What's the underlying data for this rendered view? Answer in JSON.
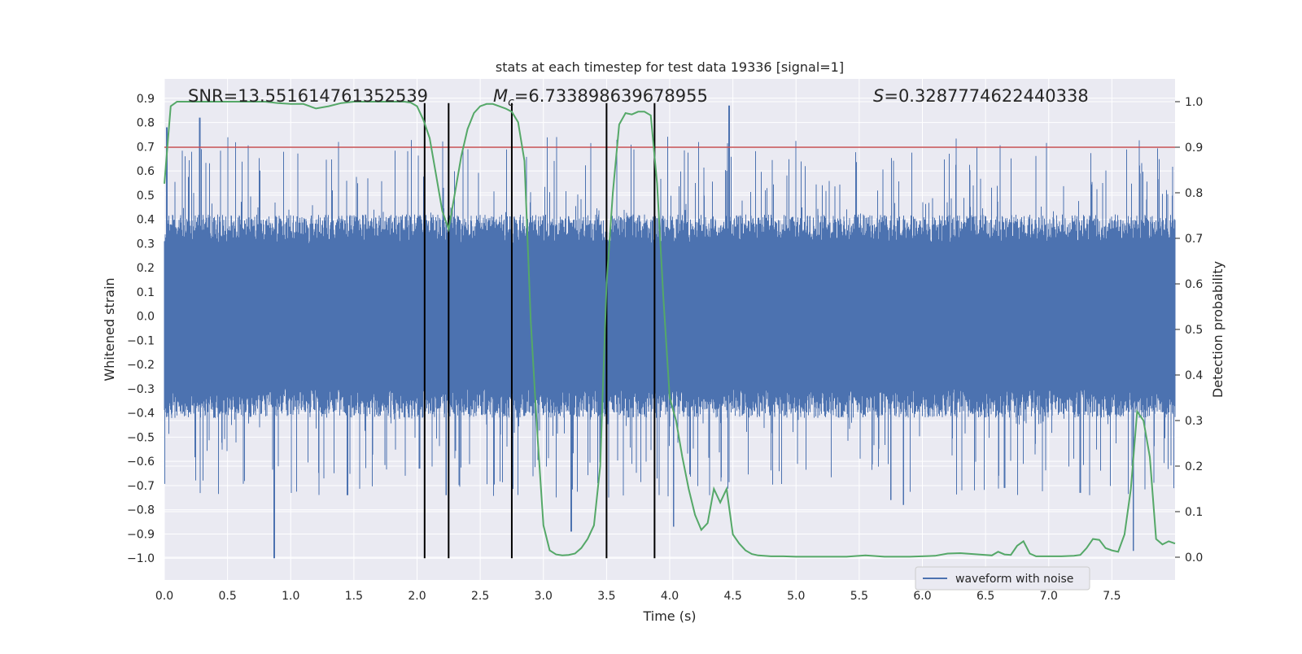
{
  "chart_data": {
    "type": "line",
    "title": "stats at each timestep for test data 19336 [signal=1]",
    "xlabel": "Time (s)",
    "ylabel": "Whitened strain",
    "ylabel_right": "Detection probability",
    "xlim": [
      0.0,
      8.0
    ],
    "ylim": [
      -1.09,
      0.98
    ],
    "ylim_right": [
      -0.05,
      1.05
    ],
    "x_ticks": [
      "0.0",
      "0.5",
      "1.0",
      "1.5",
      "2.0",
      "2.5",
      "3.0",
      "3.5",
      "4.0",
      "4.5",
      "5.0",
      "5.5",
      "6.0",
      "6.5",
      "7.0",
      "7.5"
    ],
    "y_ticks": [
      "0.9",
      "0.8",
      "0.7",
      "0.6",
      "0.5",
      "0.4",
      "0.3",
      "0.2",
      "0.1",
      "0.0",
      "−0.1",
      "−0.2",
      "−0.3",
      "−0.4",
      "−0.5",
      "−0.6",
      "−0.7",
      "−0.8",
      "−0.9",
      "−1.0"
    ],
    "y_ticks_right": [
      "1.0",
      "0.9",
      "0.8",
      "0.7",
      "0.6",
      "0.5",
      "0.4",
      "0.3",
      "0.2",
      "0.1",
      "0.0"
    ],
    "annotations": {
      "snr": "SNR=13.551614761352539",
      "mc_symbol": "M",
      "mc_sub": "c",
      "mc_value": "=6.733898639678955",
      "s_symbol": "S",
      "s_value": "=0.3287774622440338"
    },
    "threshold_right": 0.9,
    "vertical_lines": [
      2.06,
      2.25,
      2.75,
      3.5,
      3.88
    ],
    "vertical_line_range": [
      -1.0,
      0.88
    ],
    "legend": {
      "label": "waveform with noise",
      "position": "lower-right"
    },
    "colors": {
      "waveform": "#4c72b0",
      "probability": "#55a868",
      "threshold": "#c44e52",
      "vlines": "#000000",
      "background": "#eaeaf2"
    },
    "series": [
      {
        "name": "waveform with noise",
        "axis": "left",
        "description": "dense noisy strain samples, core band about ±0.3, peaks to about ±0.9",
        "peaks": [
          {
            "x": 0.02,
            "y": 0.78
          },
          {
            "x": 0.28,
            "y": 0.82
          },
          {
            "x": 0.87,
            "y": -1.0
          },
          {
            "x": 1.45,
            "y": -0.74
          },
          {
            "x": 2.02,
            "y": -0.63
          },
          {
            "x": 2.23,
            "y": -0.74
          },
          {
            "x": 3.22,
            "y": -0.89
          },
          {
            "x": 4.03,
            "y": -0.87
          },
          {
            "x": 4.47,
            "y": 0.87
          },
          {
            "x": 5.75,
            "y": -0.76
          },
          {
            "x": 5.85,
            "y": -0.78
          },
          {
            "x": 6.65,
            "y": -0.71
          },
          {
            "x": 7.25,
            "y": -0.73
          },
          {
            "x": 7.67,
            "y": -0.97
          }
        ]
      },
      {
        "name": "detection probability",
        "axis": "right",
        "x": [
          0.0,
          0.05,
          0.1,
          0.2,
          0.3,
          0.4,
          0.5,
          0.6,
          0.7,
          0.8,
          0.9,
          1.0,
          1.1,
          1.2,
          1.3,
          1.4,
          1.5,
          1.6,
          1.7,
          1.8,
          1.9,
          1.95,
          2.0,
          2.05,
          2.1,
          2.15,
          2.2,
          2.25,
          2.3,
          2.35,
          2.4,
          2.45,
          2.5,
          2.55,
          2.6,
          2.65,
          2.7,
          2.75,
          2.8,
          2.85,
          2.9,
          2.95,
          3.0,
          3.05,
          3.1,
          3.15,
          3.2,
          3.25,
          3.3,
          3.35,
          3.4,
          3.45,
          3.5,
          3.55,
          3.6,
          3.65,
          3.7,
          3.75,
          3.8,
          3.85,
          3.9,
          3.95,
          4.0,
          4.05,
          4.1,
          4.15,
          4.2,
          4.25,
          4.3,
          4.35,
          4.4,
          4.45,
          4.5,
          4.55,
          4.6,
          4.65,
          4.7,
          4.8,
          4.9,
          5.0,
          5.2,
          5.4,
          5.55,
          5.7,
          5.9,
          6.1,
          6.2,
          6.3,
          6.4,
          6.5,
          6.55,
          6.6,
          6.65,
          6.7,
          6.75,
          6.8,
          6.85,
          6.9,
          7.0,
          7.1,
          7.2,
          7.25,
          7.3,
          7.35,
          7.4,
          7.45,
          7.5,
          7.55,
          7.6,
          7.65,
          7.7,
          7.75,
          7.8,
          7.85,
          7.9,
          7.95,
          8.0
        ],
        "values": [
          0.82,
          0.99,
          1.0,
          1.0,
          1.0,
          1.0,
          1.0,
          1.0,
          1.0,
          1.0,
          0.997,
          0.995,
          0.995,
          0.985,
          0.99,
          0.997,
          1.0,
          1.0,
          1.0,
          1.0,
          1.0,
          0.998,
          0.99,
          0.96,
          0.92,
          0.84,
          0.76,
          0.72,
          0.8,
          0.88,
          0.94,
          0.975,
          0.99,
          0.995,
          0.995,
          0.99,
          0.985,
          0.978,
          0.955,
          0.87,
          0.52,
          0.28,
          0.07,
          0.015,
          0.006,
          0.004,
          0.005,
          0.008,
          0.02,
          0.04,
          0.07,
          0.2,
          0.6,
          0.8,
          0.95,
          0.975,
          0.972,
          0.978,
          0.978,
          0.97,
          0.82,
          0.57,
          0.35,
          0.3,
          0.22,
          0.15,
          0.093,
          0.06,
          0.075,
          0.15,
          0.12,
          0.15,
          0.05,
          0.03,
          0.015,
          0.007,
          0.004,
          0.002,
          0.002,
          0.001,
          0.001,
          0.001,
          0.004,
          0.001,
          0.001,
          0.003,
          0.008,
          0.009,
          0.007,
          0.005,
          0.004,
          0.012,
          0.006,
          0.005,
          0.025,
          0.035,
          0.008,
          0.002,
          0.002,
          0.002,
          0.003,
          0.005,
          0.02,
          0.04,
          0.038,
          0.02,
          0.015,
          0.012,
          0.05,
          0.15,
          0.32,
          0.3,
          0.22,
          0.04,
          0.028,
          0.035,
          0.03
        ]
      }
    ]
  }
}
